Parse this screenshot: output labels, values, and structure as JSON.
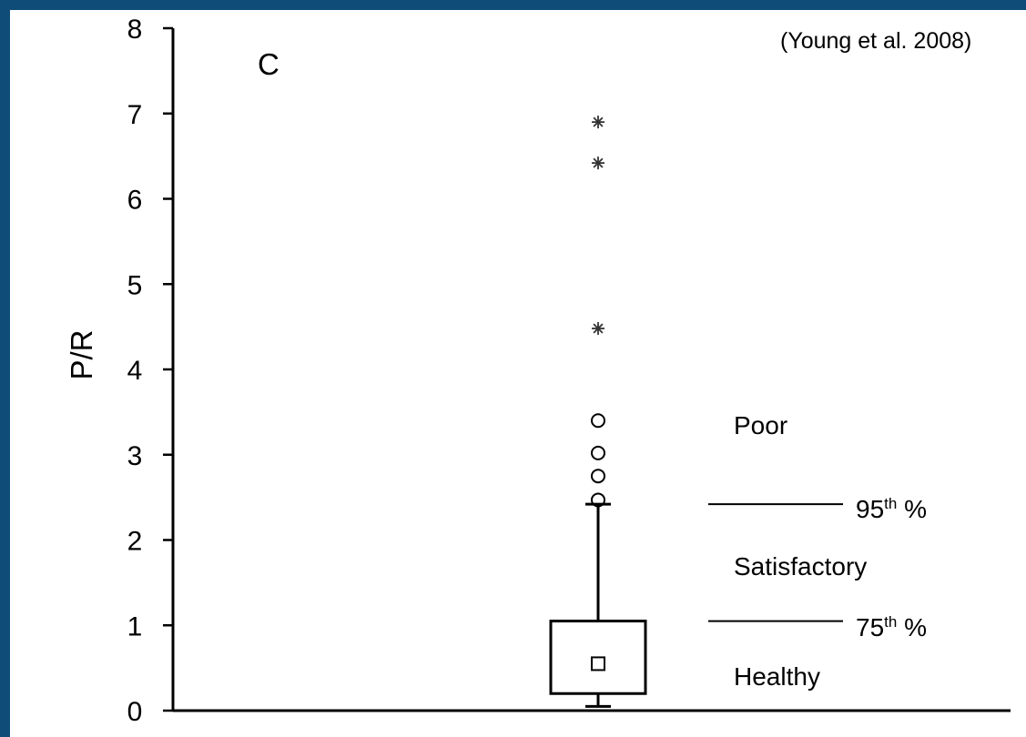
{
  "citation": "(Young et al. 2008)",
  "panel_letter": "C",
  "colors": {
    "background": "#0f4d78",
    "plot_bg": "#ffffff",
    "ink": "#000000"
  },
  "chart_data": {
    "type": "box",
    "ylabel": "P/R",
    "ylim": [
      0,
      8
    ],
    "yticks": [
      0,
      1,
      2,
      3,
      4,
      5,
      6,
      7,
      8
    ],
    "ytick_labels": [
      "0",
      "1",
      "2",
      "3",
      "4",
      "5",
      "6",
      "7",
      "8"
    ],
    "box": {
      "whisker_low": 0.05,
      "q1": 0.2,
      "q3": 1.05,
      "whisker_high": 2.42,
      "mean": 0.55
    },
    "outliers_circle": [
      2.47,
      2.75,
      3.02,
      3.4
    ],
    "outliers_extreme": [
      4.48,
      6.42,
      6.9
    ],
    "thresholds": [
      {
        "value": 2.42,
        "percentile": "95",
        "suffix": "th",
        "unit": "%"
      },
      {
        "value": 1.05,
        "percentile": "75",
        "suffix": "th",
        "unit": "%"
      }
    ],
    "zones": [
      "Poor",
      "Satisfactory",
      "Healthy"
    ]
  }
}
